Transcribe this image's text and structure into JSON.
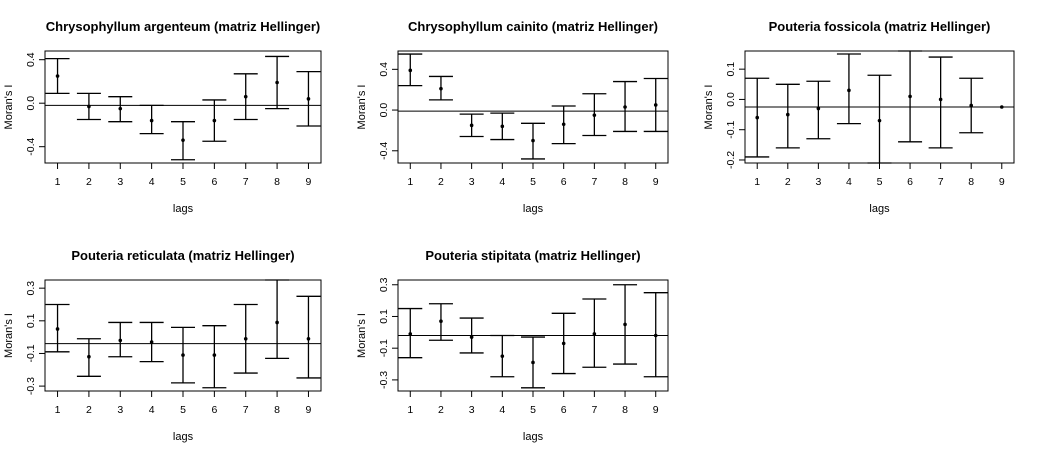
{
  "chart_data": [
    {
      "type": "errorbar",
      "title": "Chrysophyllum argenteum (matriz Hellinger)",
      "xlabel": "lags",
      "ylabel": "Moran's I",
      "x": [
        1,
        2,
        3,
        4,
        5,
        6,
        7,
        8,
        9
      ],
      "y": [
        0.25,
        -0.03,
        -0.05,
        -0.16,
        -0.34,
        -0.16,
        0.06,
        0.19,
        0.04
      ],
      "lower": [
        0.09,
        -0.15,
        -0.17,
        -0.28,
        -0.52,
        -0.35,
        -0.15,
        -0.05,
        -0.21
      ],
      "upper": [
        0.41,
        0.09,
        0.06,
        -0.02,
        -0.17,
        0.03,
        0.27,
        0.43,
        0.29
      ],
      "hline": -0.02,
      "xlim": [
        0.6,
        9.4
      ],
      "ylim": [
        -0.55,
        0.48
      ],
      "yticks": [
        -0.4,
        0.0,
        0.4
      ],
      "ytick_labels": [
        "-0.4",
        "0.0",
        "0.4"
      ],
      "xticks": [
        "1",
        "2",
        "3",
        "4",
        "5",
        "6",
        "7",
        "8",
        "9"
      ]
    },
    {
      "type": "errorbar",
      "title": "Chrysophyllum cainito (matriz Hellinger)",
      "xlabel": "lags",
      "ylabel": "Moran's I",
      "x": [
        1,
        2,
        3,
        4,
        5,
        6,
        7,
        8,
        9
      ],
      "y": [
        0.39,
        0.21,
        -0.15,
        -0.16,
        -0.3,
        -0.14,
        -0.05,
        0.03,
        0.05
      ],
      "lower": [
        0.24,
        0.1,
        -0.26,
        -0.29,
        -0.48,
        -0.33,
        -0.25,
        -0.21,
        -0.21
      ],
      "upper": [
        0.55,
        0.33,
        -0.04,
        -0.03,
        -0.13,
        0.04,
        0.16,
        0.28,
        0.31
      ],
      "hline": -0.01,
      "xlim": [
        0.6,
        9.4
      ],
      "ylim": [
        -0.52,
        0.58
      ],
      "yticks": [
        -0.4,
        0.0,
        0.4
      ],
      "ytick_labels": [
        "-0.4",
        "0.0",
        "0.4"
      ],
      "xticks": [
        "1",
        "2",
        "3",
        "4",
        "5",
        "6",
        "7",
        "8",
        "9"
      ]
    },
    {
      "type": "errorbar",
      "title": "Pouteria fossicola (matriz Hellinger)",
      "xlabel": "lags",
      "ylabel": "Moran's I",
      "x": [
        1,
        2,
        3,
        4,
        5,
        6,
        7,
        8,
        9
      ],
      "y": [
        -0.06,
        -0.05,
        -0.03,
        0.03,
        -0.07,
        0.01,
        0.0,
        -0.02,
        -0.025
      ],
      "lower": [
        -0.19,
        -0.16,
        -0.13,
        -0.08,
        -0.21,
        -0.14,
        -0.16,
        -0.11,
        -0.025
      ],
      "upper": [
        0.07,
        0.05,
        0.06,
        0.15,
        0.08,
        0.16,
        0.14,
        0.07,
        -0.025
      ],
      "hline": -0.025,
      "xlim": [
        0.6,
        9.4
      ],
      "ylim": [
        -0.21,
        0.16
      ],
      "yticks": [
        -0.2,
        -0.1,
        0.0,
        0.1
      ],
      "ytick_labels": [
        "-0.2",
        "-0.1",
        "0.0",
        "0.1"
      ],
      "xticks": [
        "1",
        "2",
        "3",
        "4",
        "5",
        "6",
        "7",
        "8",
        "9"
      ]
    },
    {
      "type": "errorbar",
      "title": "Pouteria reticulata (matriz Hellinger)",
      "xlabel": "lags",
      "ylabel": "Moran's I",
      "x": [
        1,
        2,
        3,
        4,
        5,
        6,
        7,
        8,
        9
      ],
      "y": [
        0.05,
        -0.12,
        -0.02,
        -0.03,
        -0.11,
        -0.11,
        -0.01,
        0.09,
        -0.01
      ],
      "lower": [
        -0.09,
        -0.24,
        -0.12,
        -0.15,
        -0.28,
        -0.31,
        -0.22,
        -0.13,
        -0.25
      ],
      "upper": [
        0.2,
        -0.01,
        0.09,
        0.09,
        0.06,
        0.07,
        0.2,
        0.35,
        0.25
      ],
      "hline": -0.04,
      "xlim": [
        0.6,
        9.4
      ],
      "ylim": [
        -0.33,
        0.35
      ],
      "yticks": [
        -0.3,
        -0.1,
        0.1,
        0.3
      ],
      "ytick_labels": [
        "-0.3",
        "-0.1",
        "0.1",
        "0.3"
      ],
      "xticks": [
        "1",
        "2",
        "3",
        "4",
        "5",
        "6",
        "7",
        "8",
        "9"
      ]
    },
    {
      "type": "errorbar",
      "title": "Pouteria stipitata (matriz Hellinger)",
      "xlabel": "lags",
      "ylabel": "Moran's I",
      "x": [
        1,
        2,
        3,
        4,
        5,
        6,
        7,
        8,
        9
      ],
      "y": [
        -0.01,
        0.07,
        -0.03,
        -0.15,
        -0.19,
        -0.07,
        -0.01,
        0.05,
        -0.02
      ],
      "lower": [
        -0.16,
        -0.05,
        -0.13,
        -0.28,
        -0.35,
        -0.26,
        -0.22,
        -0.2,
        -0.28
      ],
      "upper": [
        0.15,
        0.18,
        0.09,
        -0.02,
        -0.03,
        0.12,
        0.21,
        0.3,
        0.25
      ],
      "hline": -0.02,
      "xlim": [
        0.6,
        9.4
      ],
      "ylim": [
        -0.37,
        0.33
      ],
      "yticks": [
        -0.3,
        -0.1,
        0.1,
        0.3
      ],
      "ytick_labels": [
        "-0.3",
        "-0.1",
        "0.1",
        "0.3"
      ],
      "xticks": [
        "1",
        "2",
        "3",
        "4",
        "5",
        "6",
        "7",
        "8",
        "9"
      ]
    }
  ]
}
